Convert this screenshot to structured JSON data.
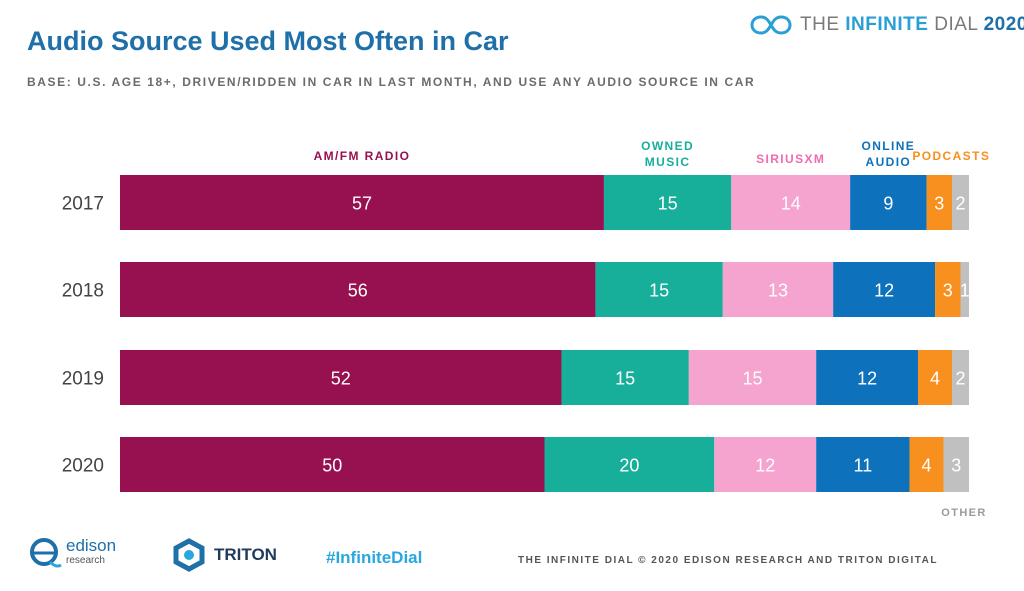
{
  "header": {
    "title": "Audio Source Used Most Often in Car",
    "subtitle": "BASE: U.S. AGE 18+, DRIVEN/RIDDEN IN CAR IN LAST MONTH, AND USE ANY AUDIO SOURCE IN CAR",
    "brand_prefix": "THE ",
    "brand_strong": "INFINITE",
    "brand_mid": " DIAL",
    "brand_year": "2020"
  },
  "footer": {
    "edison_name": "edison",
    "edison_sub": "research",
    "triton_name": "TRITON",
    "hashtag": "#InfiniteDial",
    "note": "THE INFINITE DIAL  © 2020 EDISON RESEARCH AND TRITON DIGITAL"
  },
  "colors": {
    "title": "#1f6fa9",
    "amfm": "#97104f",
    "owned": "#17ae9a",
    "sirius": "#f5a3cf",
    "online": "#0d72bb",
    "podcasts": "#f7901e",
    "other": "#c0c0c0"
  },
  "icons": [
    "infinite-dial-logo-icon",
    "edison-logo-icon",
    "triton-logo-icon"
  ],
  "chart_data": {
    "type": "bar",
    "orientation": "horizontal",
    "stacked": true,
    "categories": [
      "2017",
      "2018",
      "2019",
      "2020"
    ],
    "series": [
      {
        "name": "AM/FM RADIO",
        "color": "#97104f",
        "values": [
          57,
          56,
          52,
          50
        ]
      },
      {
        "name": "OWNED MUSIC",
        "color": "#17ae9a",
        "values": [
          15,
          15,
          15,
          20
        ]
      },
      {
        "name": "SIRIUSXM",
        "color": "#f5a3cf",
        "values": [
          14,
          13,
          15,
          12
        ]
      },
      {
        "name": "ONLINE AUDIO",
        "color": "#0d72bb",
        "values": [
          9,
          12,
          12,
          11
        ]
      },
      {
        "name": "PODCASTS",
        "color": "#f7901e",
        "values": [
          3,
          3,
          4,
          4
        ]
      },
      {
        "name": "OTHER",
        "color": "#c0c0c0",
        "values": [
          2,
          1,
          2,
          3
        ]
      }
    ],
    "xlim": [
      0,
      100
    ],
    "legend": "series labels above the top bar; OTHER label below the last bar",
    "grid": false
  }
}
